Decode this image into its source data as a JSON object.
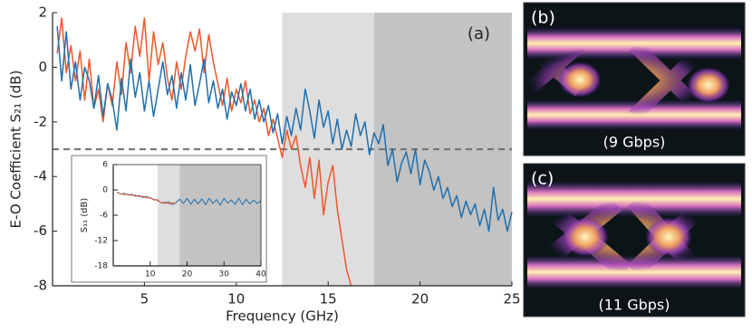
{
  "chart_data": [
    {
      "type": "line",
      "annotation": "(a)",
      "xlabel": "Frequency (GHz)",
      "ylabel": "E-O Coefficient S₂₁ (dB)",
      "xlim": [
        0,
        25
      ],
      "ylim": [
        -8,
        2
      ],
      "xticks": [
        5,
        10,
        15,
        20,
        25
      ],
      "yticks": [
        2,
        0,
        -2,
        -4,
        -6,
        -8
      ],
      "shaded_regions": [
        {
          "from": 12.5,
          "to": 17.5,
          "color": "#dedede"
        },
        {
          "from": 17.5,
          "to": 25,
          "color": "#c3c3c3"
        }
      ],
      "hline": {
        "value": -3,
        "color": "#777777"
      },
      "x": [
        0.25,
        0.5,
        0.75,
        1,
        1.25,
        1.5,
        1.75,
        2,
        2.25,
        2.5,
        2.75,
        3,
        3.25,
        3.5,
        3.75,
        4,
        4.25,
        4.5,
        4.75,
        5,
        5.25,
        5.5,
        5.75,
        6,
        6.25,
        6.5,
        6.75,
        7,
        7.25,
        7.5,
        7.75,
        8,
        8.25,
        8.5,
        8.75,
        9,
        9.25,
        9.5,
        9.75,
        10,
        10.25,
        10.5,
        10.75,
        11,
        11.25,
        11.5,
        11.75,
        12,
        12.25,
        12.5,
        12.75,
        13,
        13.25,
        13.5,
        13.75,
        14,
        14.25,
        14.5,
        14.75,
        15,
        15.25,
        15.5,
        15.75,
        16,
        16.25,
        16.5,
        16.75,
        17,
        17.25,
        17.5,
        17.75,
        18,
        18.25,
        18.5,
        18.75,
        19,
        19.25,
        19.5,
        19.75,
        20,
        20.25,
        20.5,
        20.75,
        21,
        21.25,
        21.5,
        21.75,
        22,
        22.25,
        22.5,
        22.75,
        23,
        23.25,
        23.5,
        23.75,
        24,
        24.25,
        24.5,
        24.75,
        25
      ],
      "series": [
        {
          "color": "#f0562a",
          "values": [
            0.5,
            1.8,
            -0.2,
            0.8,
            -0.5,
            0.6,
            -1.2,
            0.3,
            -1.5,
            -0.8,
            -2.0,
            -0.6,
            -1.4,
            0.2,
            -1.0,
            0.9,
            -0.2,
            1.5,
            0.4,
            1.8,
            -0.5,
            1.3,
            0.1,
            0.9,
            -0.4,
            -1.2,
            0.2,
            -0.8,
            0.4,
            1.3,
            0.6,
            1.4,
            -0.2,
            1.2,
            0.2,
            -0.6,
            -1.4,
            -0.4,
            -1.6,
            -0.8,
            -1.3,
            -0.5,
            -1.7,
            -1.2,
            -2.0,
            -1.5,
            -2.5,
            -1.9,
            -2.6,
            -3.3,
            -2.3,
            -3.0,
            -2.5,
            -3.6,
            -4.4,
            -3.3,
            -4.8,
            -3.4,
            -5.4,
            -4.2,
            -3.6,
            -5.2,
            -6.3,
            -7.4,
            -8.0,
            null,
            null,
            null,
            null,
            null,
            null,
            null,
            null,
            null,
            null,
            null,
            null,
            null,
            null,
            null,
            null,
            null,
            null,
            null,
            null,
            null,
            null,
            null,
            null,
            null,
            null,
            null,
            null,
            null,
            null,
            null,
            null,
            null,
            null,
            null
          ]
        },
        {
          "color": "#1f6fae",
          "values": [
            1.5,
            -0.5,
            1.3,
            -0.8,
            0.2,
            -1.2,
            0,
            -0.5,
            -1.5,
            -0.3,
            -1.8,
            -0.6,
            -1.2,
            -2.3,
            -0.4,
            -1.6,
            0.3,
            -1.1,
            -0.2,
            -1.6,
            -0.5,
            -1.8,
            -0.8,
            0.2,
            -1.0,
            -0.3,
            -1.5,
            -0.2,
            -1.2,
            0.1,
            -1.4,
            -0.6,
            0.3,
            -1.3,
            -0.5,
            -1.5,
            -0.8,
            -1.9,
            -0.9,
            -1.4,
            -0.6,
            -1.6,
            -0.8,
            -1.9,
            -1.2,
            -2.0,
            -1.4,
            -2.4,
            -1.7,
            -2.8,
            -1.8,
            -2.5,
            -1.5,
            -2.3,
            -0.8,
            -1.6,
            -2.6,
            -1.2,
            -2.2,
            -1.6,
            -2.8,
            -1.9,
            -3.0,
            -2.3,
            -2.9,
            -1.7,
            -2.5,
            -2.0,
            -3.2,
            -2.4,
            -2.8,
            -2.1,
            -3.6,
            -3.0,
            -4.2,
            -3.5,
            -3.1,
            -3.9,
            -3.0,
            -4.3,
            -3.4,
            -3.8,
            -4.5,
            -4.0,
            -4.8,
            -4.4,
            -5.1,
            -4.7,
            -5.5,
            -4.9,
            -5.4,
            -5.0,
            -5.8,
            -5.2,
            -6.0,
            -4.4,
            -5.6,
            -5.2,
            -6.0,
            -5.3
          ]
        }
      ]
    },
    {
      "type": "line",
      "ylabel": "S₁₁ (dB)",
      "xlim": [
        0,
        40
      ],
      "ylim": [
        -18,
        6
      ],
      "xticks": [
        10,
        20,
        30,
        40
      ],
      "yticks": [
        6,
        0,
        -6,
        -12,
        -18
      ],
      "shaded_regions": [
        {
          "from": 12,
          "to": 18,
          "color": "#dedede"
        },
        {
          "from": 18,
          "to": 40,
          "color": "#c3c3c3"
        }
      ],
      "x": [
        1,
        2,
        3,
        4,
        5,
        6,
        7,
        8,
        9,
        10,
        11,
        12,
        13,
        14,
        15,
        16,
        17,
        18,
        19,
        20,
        21,
        22,
        23,
        24,
        25,
        26,
        27,
        28,
        29,
        30,
        31,
        32,
        33,
        34,
        35,
        36,
        37,
        38,
        39,
        40
      ],
      "series": [
        {
          "color": "#1f6fae",
          "values": [
            -0.5,
            -1,
            -0.8,
            -1.2,
            -1,
            -1.5,
            -1.3,
            -1.8,
            -1.5,
            -2,
            -2.2,
            -2.5,
            -3,
            -3.2,
            -2.8,
            -3.5,
            -3,
            -2.2,
            -3.2,
            -2,
            -3.4,
            -2.2,
            -3.3,
            -2.1,
            -3.5,
            -2,
            -3.2,
            -2.3,
            -3.6,
            -2,
            -3.1,
            -2.4,
            -3.4,
            -2,
            -3.5,
            -2.2,
            -3.3,
            -2.4,
            -3.2,
            -2.6
          ]
        },
        {
          "color": "#f0562a",
          "values": [
            -0.6,
            -0.9,
            -1.1,
            -1.0,
            -1.3,
            -1.2,
            -1.6,
            -1.5,
            -1.9,
            -1.8,
            -2.4,
            -2.3,
            -3.1,
            -2.9,
            -3.3,
            -3.0,
            -3.2,
            null,
            null,
            null,
            null,
            null,
            null,
            null,
            null,
            null,
            null,
            null,
            null,
            null,
            null,
            null,
            null,
            null,
            null,
            null,
            null,
            null,
            null,
            null
          ]
        }
      ]
    }
  ],
  "eye_diagrams": [
    {
      "label": "(b)",
      "caption": "(9 Gbps)"
    },
    {
      "label": "(c)",
      "caption": "(11 Gbps)"
    }
  ]
}
